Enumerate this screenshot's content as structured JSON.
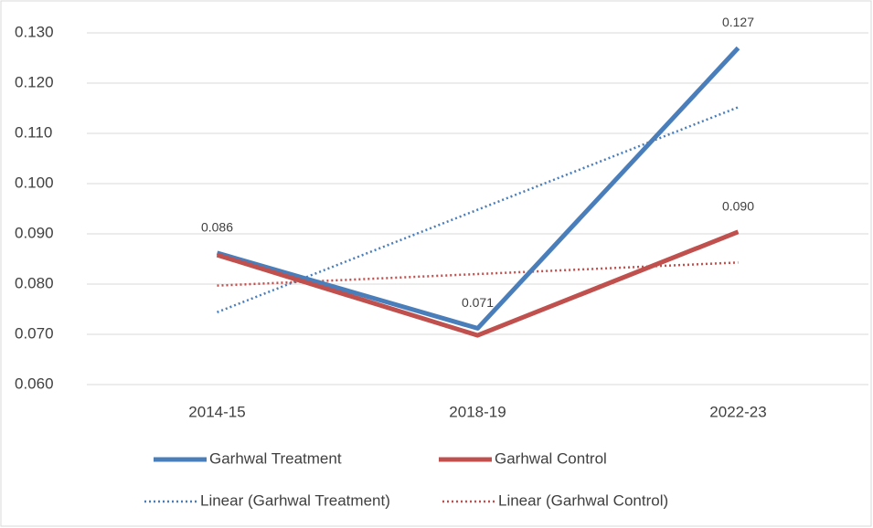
{
  "chart_data": {
    "type": "line",
    "categories": [
      "2014-15",
      "2018-19",
      "2022-23"
    ],
    "series": [
      {
        "name": "Garhwal Treatment",
        "color": "#4a7ebb",
        "values": [
          0.0862,
          0.0712,
          0.127
        ],
        "value_labels": [
          "0.086",
          "0.071",
          "0.127"
        ]
      },
      {
        "name": "Garhwal Control",
        "color": "#c0504d",
        "values": [
          0.0858,
          0.0698,
          0.0904
        ],
        "value_labels": [
          null,
          null,
          "0.090"
        ]
      }
    ],
    "trendlines": [
      {
        "name": "Linear (Garhwal Treatment)",
        "type": "linear",
        "series": 0,
        "color": "#4a7ebb"
      },
      {
        "name": "Linear (Garhwal Control)",
        "type": "linear",
        "series": 1,
        "color": "#c0504d"
      }
    ],
    "ylim": [
      0.06,
      0.13
    ],
    "yticks": [
      {
        "value": 0.06,
        "label": "0.060"
      },
      {
        "value": 0.07,
        "label": "0.070"
      },
      {
        "value": 0.08,
        "label": "0.080"
      },
      {
        "value": 0.09,
        "label": "0.090"
      },
      {
        "value": 0.1,
        "label": "0.100"
      },
      {
        "value": 0.11,
        "label": "0.110"
      },
      {
        "value": 0.12,
        "label": "0.120"
      },
      {
        "value": 0.13,
        "label": "0.130"
      }
    ],
    "grid": true,
    "legend": "bottom"
  }
}
